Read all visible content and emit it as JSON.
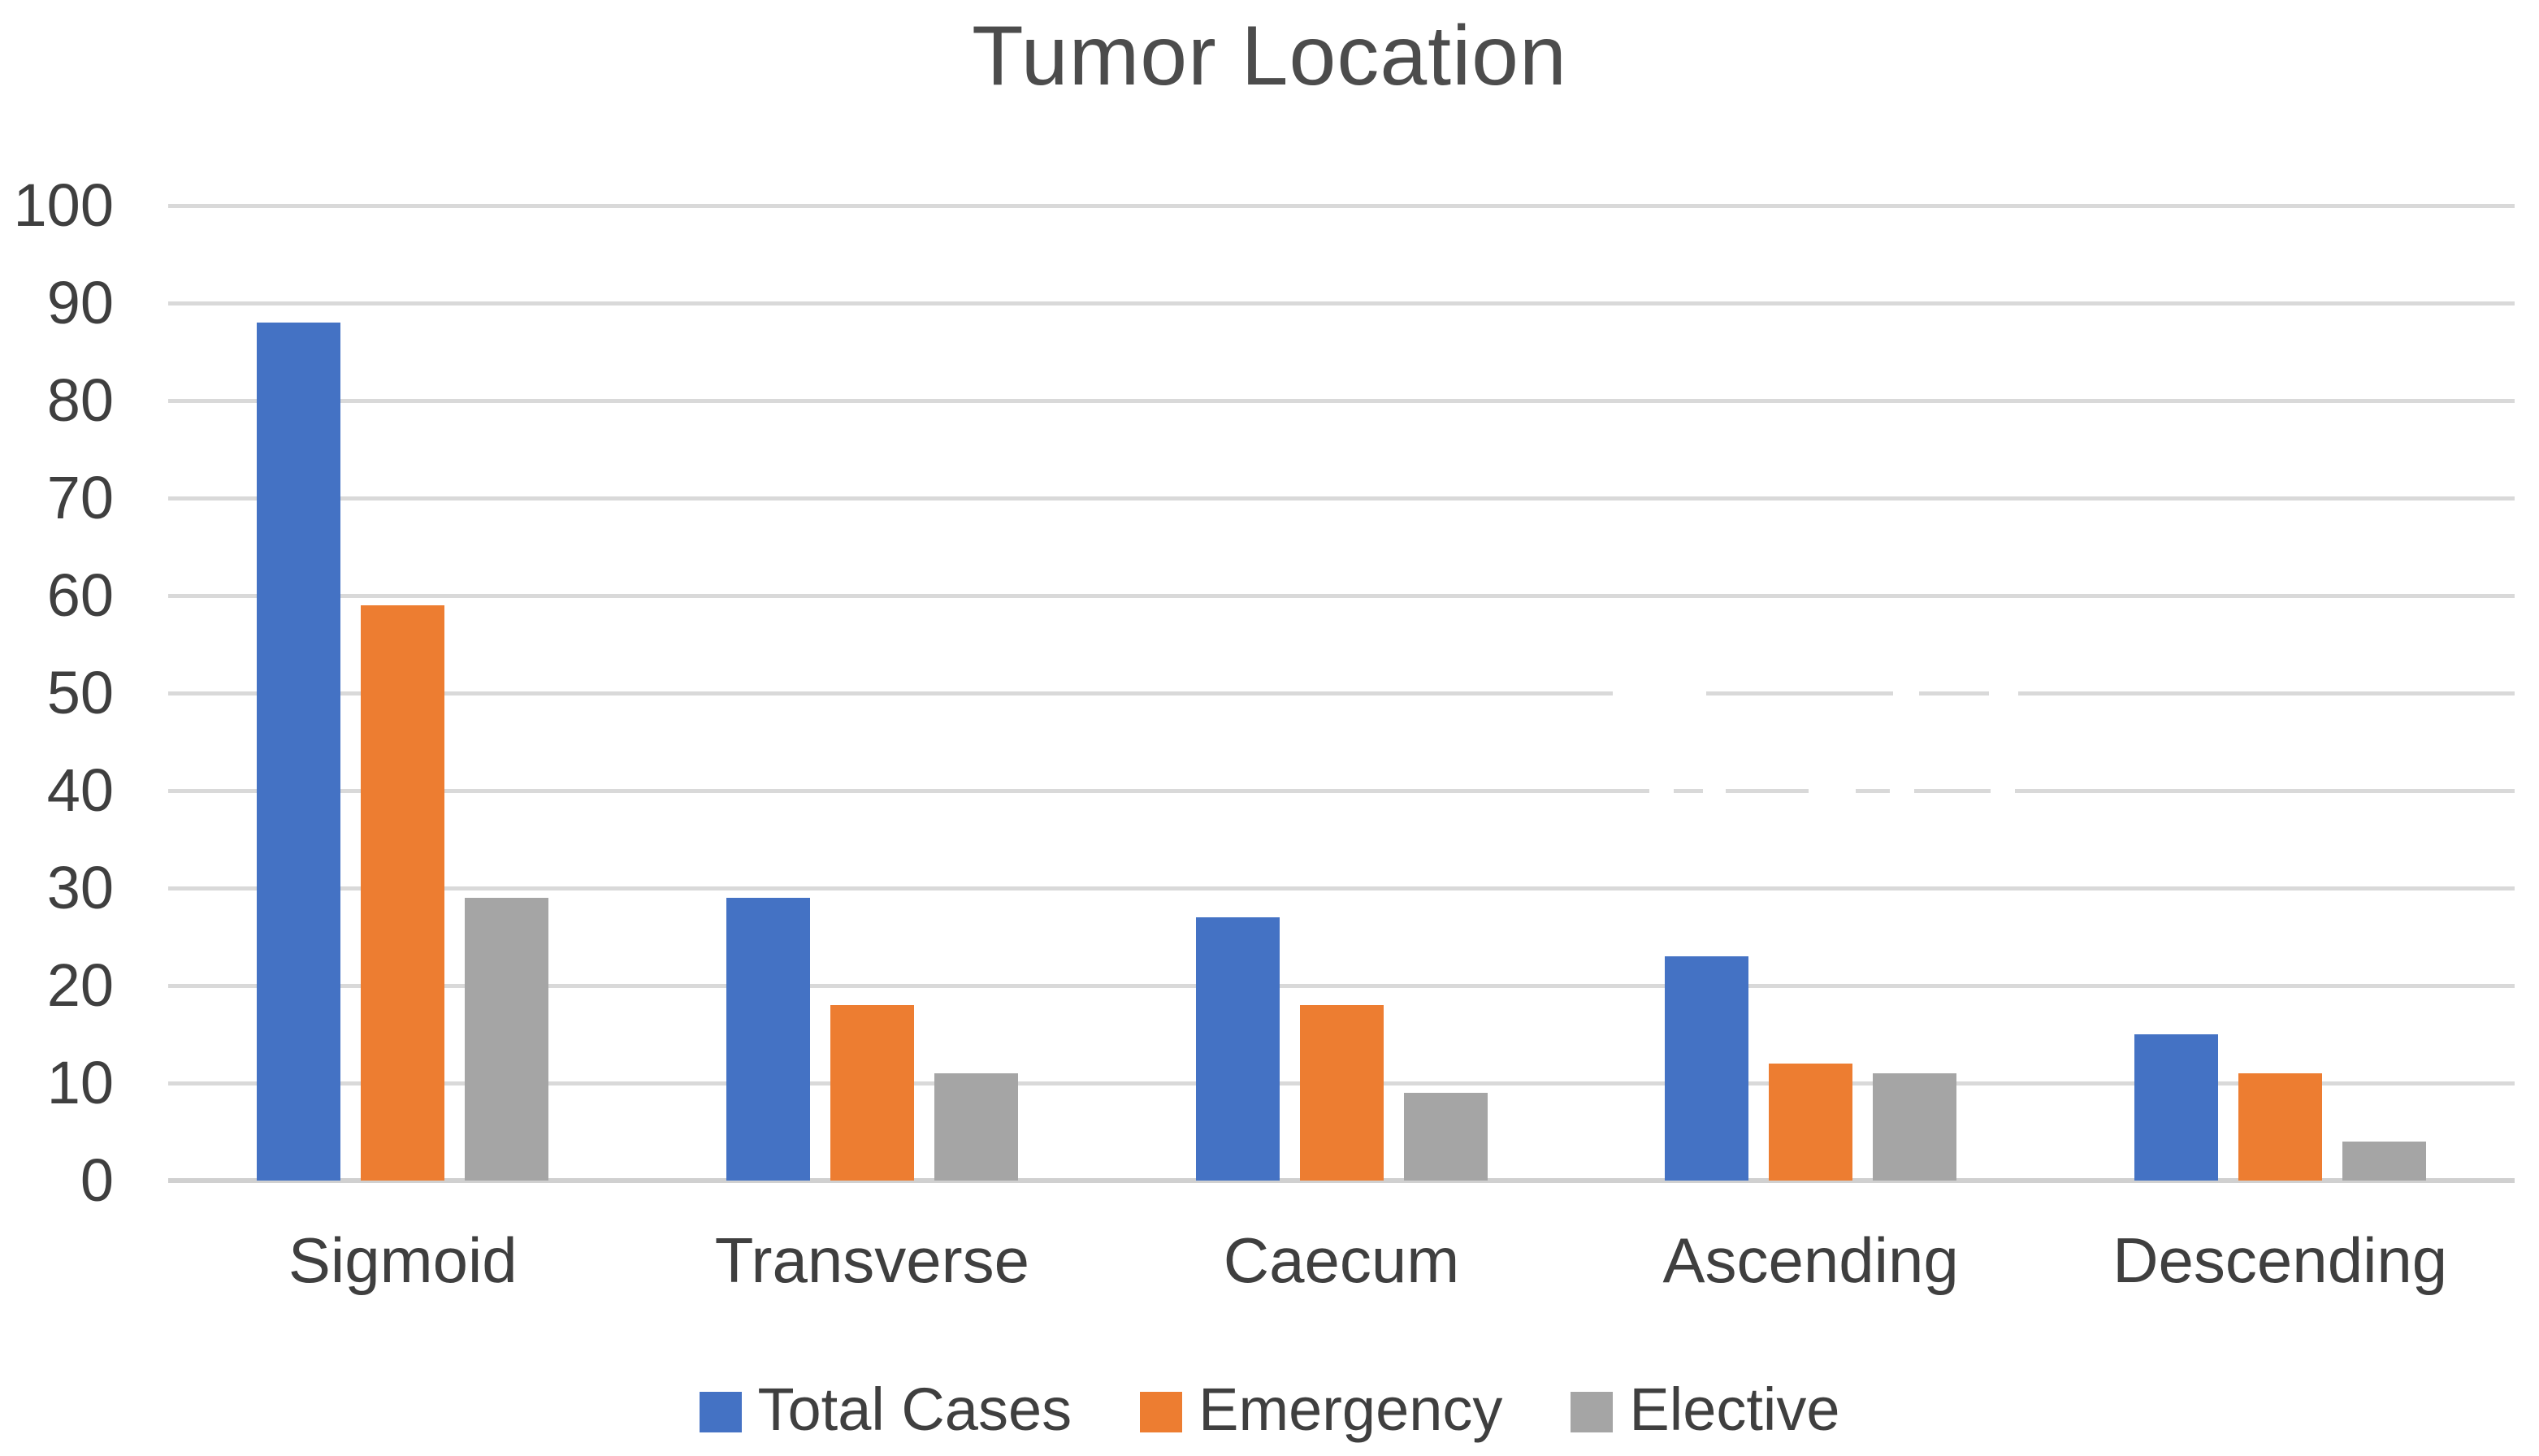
{
  "chart_data": {
    "type": "bar",
    "title": "Tumor Location",
    "categories": [
      "Sigmoid",
      "Transverse",
      "Caecum",
      "Ascending",
      "Descending"
    ],
    "series": [
      {
        "name": "Total Cases",
        "color": "#4472C4",
        "values": [
          88,
          29,
          27,
          23,
          15
        ]
      },
      {
        "name": "Emergency",
        "color": "#ED7D31",
        "values": [
          59,
          18,
          18,
          12,
          11
        ]
      },
      {
        "name": "Elective",
        "color": "#A5A5A5",
        "values": [
          29,
          11,
          9,
          11,
          4
        ]
      }
    ],
    "xlabel": "",
    "ylabel": "",
    "ylim": [
      0,
      100
    ],
    "yticks": [
      100,
      90,
      80,
      70,
      60,
      50,
      40,
      30,
      20,
      10,
      0
    ],
    "grid": "horizontal",
    "gridline_color": "#D9D9D9",
    "legend_position": "bottom",
    "text_color": "#3F3F3F",
    "title_color": "#4C4C4C",
    "background": "#FFFFFF"
  }
}
